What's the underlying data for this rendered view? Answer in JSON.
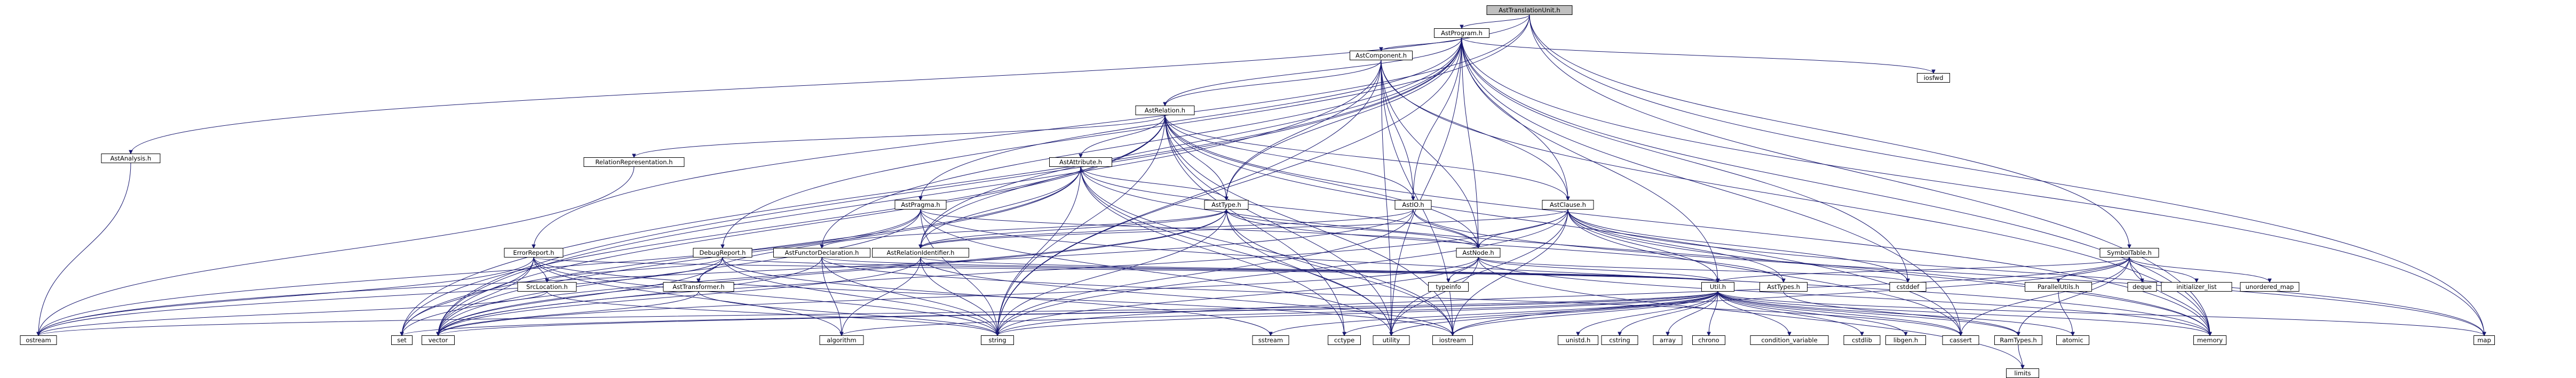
{
  "graph": {
    "root": "AstTranslationUnit.h",
    "nodes": [
      {
        "id": "root",
        "label": "AstTranslationUnit.h",
        "style": "root"
      },
      {
        "id": "astprogram",
        "label": "AstProgram.h",
        "style": "normal"
      },
      {
        "id": "astanalysis",
        "label": "AstAnalysis.h",
        "style": "normal"
      },
      {
        "id": "errorreport",
        "label": "ErrorReport.h",
        "style": "normal"
      },
      {
        "id": "debugreport",
        "label": "DebugReport.h",
        "style": "normal"
      },
      {
        "id": "symboltable",
        "label": "SymbolTable.h",
        "style": "normal"
      },
      {
        "id": "astcomponent",
        "label": "AstComponent.h",
        "style": "normal"
      },
      {
        "id": "iosfwd",
        "label": "iosfwd",
        "style": "system"
      },
      {
        "id": "astrelation",
        "label": "AstRelation.h",
        "style": "normal"
      },
      {
        "id": "relrep",
        "label": "RelationRepresentation.h",
        "style": "normal"
      },
      {
        "id": "astattribute",
        "label": "AstAttribute.h",
        "style": "normal"
      },
      {
        "id": "astclause",
        "label": "AstClause.h",
        "style": "red"
      },
      {
        "id": "astpragma",
        "label": "AstPragma.h",
        "style": "normal"
      },
      {
        "id": "astio",
        "label": "AstIO.h",
        "style": "normal"
      },
      {
        "id": "asttype",
        "label": "AstType.h",
        "style": "normal"
      },
      {
        "id": "astnode",
        "label": "AstNode.h",
        "style": "normal"
      },
      {
        "id": "astfunctor",
        "label": "AstFunctorDeclaration.h",
        "style": "normal"
      },
      {
        "id": "astrelid",
        "label": "AstRelationIdentifier.h",
        "style": "normal"
      },
      {
        "id": "srclocation",
        "label": "SrcLocation.h",
        "style": "normal"
      },
      {
        "id": "asttransformer",
        "label": "AstTransformer.h",
        "style": "normal"
      },
      {
        "id": "typeinfo",
        "label": "typeinfo",
        "style": "system"
      },
      {
        "id": "util",
        "label": "Util.h",
        "style": "red"
      },
      {
        "id": "asttypes",
        "label": "AstTypes.h",
        "style": "red"
      },
      {
        "id": "cstddef",
        "label": "cstddef",
        "style": "system"
      },
      {
        "id": "parallelutils",
        "label": "ParallelUtils.h",
        "style": "normal"
      },
      {
        "id": "deque",
        "label": "deque",
        "style": "system"
      },
      {
        "id": "initlist",
        "label": "initializer_list",
        "style": "system"
      },
      {
        "id": "unorderedmap",
        "label": "unordered_map",
        "style": "system"
      },
      {
        "id": "ostream",
        "label": "ostream",
        "style": "system"
      },
      {
        "id": "set",
        "label": "set",
        "style": "system"
      },
      {
        "id": "vector",
        "label": "vector",
        "style": "system"
      },
      {
        "id": "algorithm",
        "label": "algorithm",
        "style": "system"
      },
      {
        "id": "string",
        "label": "string",
        "style": "system"
      },
      {
        "id": "sstream",
        "label": "sstream",
        "style": "system"
      },
      {
        "id": "cctype",
        "label": "cctype",
        "style": "system"
      },
      {
        "id": "utility",
        "label": "utility",
        "style": "system"
      },
      {
        "id": "iostream",
        "label": "iostream",
        "style": "system"
      },
      {
        "id": "unistd",
        "label": "unistd.h",
        "style": "system"
      },
      {
        "id": "cstring",
        "label": "cstring",
        "style": "system"
      },
      {
        "id": "array",
        "label": "array",
        "style": "system"
      },
      {
        "id": "chrono",
        "label": "chrono",
        "style": "system"
      },
      {
        "id": "condvar",
        "label": "condition_variable",
        "style": "system"
      },
      {
        "id": "cstdlib",
        "label": "cstdlib",
        "style": "system"
      },
      {
        "id": "libgen",
        "label": "libgen.h",
        "style": "system"
      },
      {
        "id": "cassert",
        "label": "cassert",
        "style": "system"
      },
      {
        "id": "ramtypes",
        "label": "RamTypes.h",
        "style": "red"
      },
      {
        "id": "atomic",
        "label": "atomic",
        "style": "system"
      },
      {
        "id": "memory",
        "label": "memory",
        "style": "system"
      },
      {
        "id": "map",
        "label": "map",
        "style": "system"
      },
      {
        "id": "limits",
        "label": "limits",
        "style": "system"
      }
    ],
    "edges": [
      [
        "root",
        "astprogram"
      ],
      [
        "root",
        "astanalysis"
      ],
      [
        "root",
        "errorreport"
      ],
      [
        "root",
        "debugreport"
      ],
      [
        "root",
        "symboltable"
      ],
      [
        "root",
        "memory"
      ],
      [
        "root",
        "map"
      ],
      [
        "astprogram",
        "astcomponent"
      ],
      [
        "astprogram",
        "astrelation"
      ],
      [
        "astprogram",
        "astclause"
      ],
      [
        "astprogram",
        "astio"
      ],
      [
        "astprogram",
        "astpragma"
      ],
      [
        "astprogram",
        "asttype"
      ],
      [
        "astprogram",
        "astfunctor"
      ],
      [
        "astprogram",
        "astrelid"
      ],
      [
        "astprogram",
        "astnode"
      ],
      [
        "astprogram",
        "util"
      ],
      [
        "astprogram",
        "iosfwd"
      ],
      [
        "astprogram",
        "cstddef"
      ],
      [
        "astprogram",
        "cassert"
      ],
      [
        "astprogram",
        "utility"
      ],
      [
        "astprogram",
        "string"
      ],
      [
        "astprogram",
        "vector"
      ],
      [
        "astprogram",
        "memory"
      ],
      [
        "astprogram",
        "map"
      ],
      [
        "astprogram",
        "set"
      ],
      [
        "astanalysis",
        "ostream"
      ],
      [
        "astcomponent",
        "astrelation"
      ],
      [
        "astcomponent",
        "astclause"
      ],
      [
        "astcomponent",
        "astio"
      ],
      [
        "astcomponent",
        "asttype"
      ],
      [
        "astcomponent",
        "astnode"
      ],
      [
        "astcomponent",
        "vector"
      ],
      [
        "astcomponent",
        "string"
      ],
      [
        "astcomponent",
        "utility"
      ],
      [
        "astcomponent",
        "memory"
      ],
      [
        "astcomponent",
        "iostream"
      ],
      [
        "astrelation",
        "relrep"
      ],
      [
        "astrelation",
        "astattribute"
      ],
      [
        "astrelation",
        "astclause"
      ],
      [
        "astrelation",
        "astio"
      ],
      [
        "astrelation",
        "asttype"
      ],
      [
        "astrelation",
        "astnode"
      ],
      [
        "astrelation",
        "astrelid"
      ],
      [
        "astrelation",
        "set"
      ],
      [
        "astrelation",
        "vector"
      ],
      [
        "astrelation",
        "string"
      ],
      [
        "astrelation",
        "cctype"
      ],
      [
        "astrelation",
        "utility"
      ],
      [
        "astrelation",
        "memory"
      ],
      [
        "astrelation",
        "cassert"
      ],
      [
        "astrelation",
        "iostream"
      ],
      [
        "relrep",
        "ostream"
      ],
      [
        "astattribute",
        "asttype"
      ],
      [
        "astattribute",
        "astnode"
      ],
      [
        "astattribute",
        "astrelid"
      ],
      [
        "astattribute",
        "string"
      ],
      [
        "astattribute",
        "vector"
      ],
      [
        "astattribute",
        "cctype"
      ],
      [
        "astattribute",
        "utility"
      ],
      [
        "astattribute",
        "memory"
      ],
      [
        "astattribute",
        "iostream"
      ],
      [
        "astattribute",
        "set"
      ],
      [
        "astclause",
        "astnode"
      ],
      [
        "astclause",
        "astrelid"
      ],
      [
        "astclause",
        "util"
      ],
      [
        "astclause",
        "asttypes"
      ],
      [
        "astclause",
        "cstddef"
      ],
      [
        "astclause",
        "memory"
      ],
      [
        "astclause",
        "string"
      ],
      [
        "astclause",
        "vector"
      ],
      [
        "astclause",
        "utility"
      ],
      [
        "astclause",
        "cassert"
      ],
      [
        "astclause",
        "map"
      ],
      [
        "astclause",
        "iostream"
      ],
      [
        "astpragma",
        "astnode"
      ],
      [
        "astpragma",
        "asttransformer"
      ],
      [
        "astpragma",
        "string"
      ],
      [
        "astpragma",
        "vector"
      ],
      [
        "astpragma",
        "utility"
      ],
      [
        "astpragma",
        "ostream"
      ],
      [
        "astpragma",
        "memory"
      ],
      [
        "astio",
        "astnode"
      ],
      [
        "astio",
        "astrelid"
      ],
      [
        "astio",
        "string"
      ],
      [
        "astio",
        "map"
      ],
      [
        "astio",
        "ostream"
      ],
      [
        "asttype",
        "astnode"
      ],
      [
        "asttype",
        "astrelid"
      ],
      [
        "asttype",
        "asttypes"
      ],
      [
        "asttype",
        "set"
      ],
      [
        "asttype",
        "string"
      ],
      [
        "asttype",
        "vector"
      ],
      [
        "asttype",
        "iostream"
      ],
      [
        "asttype",
        "utility"
      ],
      [
        "astnode",
        "typeinfo"
      ],
      [
        "astnode",
        "util"
      ],
      [
        "astnode",
        "cstddef"
      ],
      [
        "astnode",
        "memory"
      ],
      [
        "astnode",
        "string"
      ],
      [
        "astnode",
        "utility"
      ],
      [
        "astnode",
        "vector"
      ],
      [
        "astnode",
        "limits"
      ],
      [
        "astfunctor",
        "asttype"
      ],
      [
        "astfunctor",
        "util"
      ],
      [
        "astfunctor",
        "string"
      ],
      [
        "astfunctor",
        "vector"
      ],
      [
        "astfunctor",
        "algorithm"
      ],
      [
        "astfunctor",
        "cassert"
      ],
      [
        "astrelid",
        "util"
      ],
      [
        "astrelid",
        "string"
      ],
      [
        "astrelid",
        "vector"
      ],
      [
        "astrelid",
        "algorithm"
      ],
      [
        "astrelid",
        "iostream"
      ],
      [
        "errorreport",
        "srclocation"
      ],
      [
        "errorreport",
        "util"
      ],
      [
        "errorreport",
        "ostream"
      ],
      [
        "errorreport",
        "set"
      ],
      [
        "errorreport",
        "vector"
      ],
      [
        "errorreport",
        "string"
      ],
      [
        "errorreport",
        "algorithm"
      ],
      [
        "errorreport",
        "iostream"
      ],
      [
        "debugreport",
        "asttransformer"
      ],
      [
        "debugreport",
        "srclocation"
      ],
      [
        "debugreport",
        "util"
      ],
      [
        "debugreport",
        "string"
      ],
      [
        "debugreport",
        "sstream"
      ],
      [
        "debugreport",
        "vector"
      ],
      [
        "debugreport",
        "ostream"
      ],
      [
        "srclocation",
        "ostream"
      ],
      [
        "srclocation",
        "string"
      ],
      [
        "asttransformer",
        "string"
      ],
      [
        "asttransformer",
        "vector"
      ],
      [
        "symboltable",
        "parallelutils"
      ],
      [
        "symboltable",
        "util"
      ],
      [
        "symboltable",
        "ramtypes"
      ],
      [
        "symboltable",
        "deque"
      ],
      [
        "symboltable",
        "initlist"
      ],
      [
        "symboltable",
        "unorderedmap"
      ],
      [
        "symboltable",
        "iostream"
      ],
      [
        "symboltable",
        "string"
      ],
      [
        "symboltable",
        "memory"
      ],
      [
        "symboltable",
        "cassert"
      ],
      [
        "parallelutils",
        "atomic"
      ],
      [
        "util",
        "ramtypes"
      ],
      [
        "util",
        "set"
      ],
      [
        "util",
        "vector"
      ],
      [
        "util",
        "algorithm"
      ],
      [
        "util",
        "string"
      ],
      [
        "util",
        "sstream"
      ],
      [
        "util",
        "cctype"
      ],
      [
        "util",
        "utility"
      ],
      [
        "util",
        "iostream"
      ],
      [
        "util",
        "unistd"
      ],
      [
        "util",
        "cstring"
      ],
      [
        "util",
        "array"
      ],
      [
        "util",
        "chrono"
      ],
      [
        "util",
        "condvar"
      ],
      [
        "util",
        "cstdlib"
      ],
      [
        "util",
        "libgen"
      ],
      [
        "util",
        "cassert"
      ],
      [
        "util",
        "atomic"
      ],
      [
        "util",
        "memory"
      ],
      [
        "util",
        "map"
      ],
      [
        "util",
        "ostream"
      ],
      [
        "asttypes",
        "ramtypes"
      ],
      [
        "ramtypes",
        "limits"
      ]
    ]
  },
  "colors": {
    "edge": "#191970",
    "root_fill": "#bfbfbf",
    "normal_fill": "#ffffff",
    "normal_stroke": "#000000",
    "red_stroke": "#ff0000",
    "system_stroke": "#bfbfbf"
  }
}
